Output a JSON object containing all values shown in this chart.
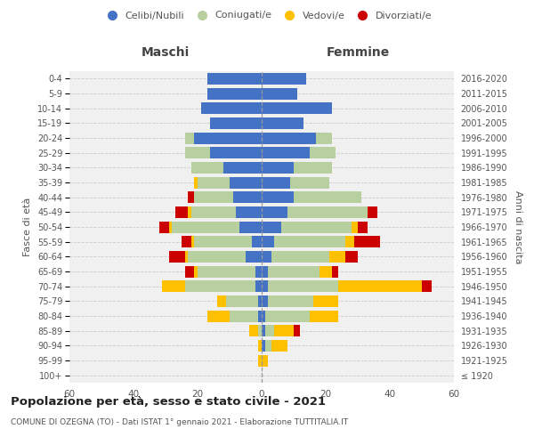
{
  "age_groups": [
    "100+",
    "95-99",
    "90-94",
    "85-89",
    "80-84",
    "75-79",
    "70-74",
    "65-69",
    "60-64",
    "55-59",
    "50-54",
    "45-49",
    "40-44",
    "35-39",
    "30-34",
    "25-29",
    "20-24",
    "15-19",
    "10-14",
    "5-9",
    "0-4"
  ],
  "birth_years": [
    "≤ 1920",
    "1921-1925",
    "1926-1930",
    "1931-1935",
    "1936-1940",
    "1941-1945",
    "1946-1950",
    "1951-1955",
    "1956-1960",
    "1961-1965",
    "1966-1970",
    "1971-1975",
    "1976-1980",
    "1981-1985",
    "1986-1990",
    "1991-1995",
    "1996-2000",
    "2001-2005",
    "2006-2010",
    "2011-2015",
    "2016-2020"
  ],
  "maschi": {
    "celibe": [
      0,
      0,
      0,
      0,
      1,
      1,
      2,
      2,
      5,
      3,
      7,
      8,
      9,
      10,
      12,
      16,
      21,
      16,
      19,
      17,
      17
    ],
    "coniugato": [
      0,
      0,
      0,
      1,
      9,
      10,
      22,
      18,
      18,
      18,
      21,
      14,
      12,
      10,
      10,
      8,
      3,
      0,
      0,
      0,
      0
    ],
    "vedovo": [
      0,
      1,
      1,
      3,
      7,
      3,
      7,
      1,
      1,
      1,
      1,
      1,
      0,
      1,
      0,
      0,
      0,
      0,
      0,
      0,
      0
    ],
    "divorziato": [
      0,
      0,
      0,
      0,
      0,
      0,
      0,
      3,
      5,
      3,
      3,
      4,
      2,
      0,
      0,
      0,
      0,
      0,
      0,
      0,
      0
    ]
  },
  "femmine": {
    "nubile": [
      0,
      0,
      1,
      1,
      1,
      2,
      2,
      2,
      3,
      4,
      6,
      8,
      10,
      9,
      10,
      15,
      17,
      13,
      22,
      11,
      14
    ],
    "coniugata": [
      0,
      0,
      2,
      3,
      14,
      14,
      22,
      16,
      18,
      22,
      22,
      25,
      21,
      12,
      12,
      8,
      5,
      0,
      0,
      0,
      0
    ],
    "vedova": [
      0,
      2,
      5,
      6,
      9,
      8,
      26,
      4,
      5,
      3,
      2,
      0,
      0,
      0,
      0,
      0,
      0,
      0,
      0,
      0,
      0
    ],
    "divorziata": [
      0,
      0,
      0,
      2,
      0,
      0,
      3,
      2,
      4,
      8,
      3,
      3,
      0,
      0,
      0,
      0,
      0,
      0,
      0,
      0,
      0
    ]
  },
  "colors": {
    "celibe": "#4472c4",
    "coniugato": "#b8cfa0",
    "vedovo": "#ffc000",
    "divorziato": "#cc0000"
  },
  "title": "Popolazione per età, sesso e stato civile - 2021",
  "subtitle": "COMUNE DI OZEGNA (TO) - Dati ISTAT 1° gennaio 2021 - Elaborazione TUTTITALIA.IT",
  "xlabel_left": "Maschi",
  "xlabel_right": "Femmine",
  "ylabel_left": "Fasce di età",
  "ylabel_right": "Anni di nascita",
  "xlim": 60,
  "bg_plot": "#f0f0f0",
  "bg_fig": "#ffffff"
}
